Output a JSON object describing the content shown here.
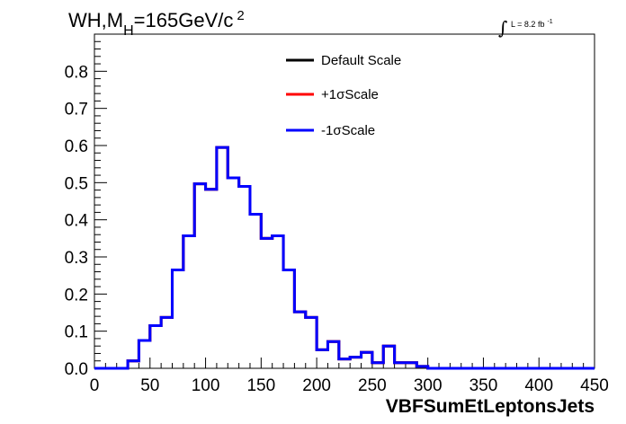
{
  "chart_data": {
    "type": "line",
    "title": {
      "prefix": "WH,M",
      "subscript": "H",
      "middle": "=165GeV/c",
      "superscript": "2"
    },
    "lumi": {
      "integral_symbol": "∫",
      "text": "L = 8.2 fb",
      "superscript": "-1"
    },
    "xlabel": "VBFSumEtLeptonsJets",
    "ylabel": "",
    "xlim": [
      0,
      450
    ],
    "ylim": [
      0,
      0.9
    ],
    "x_ticks": [
      0,
      50,
      100,
      150,
      200,
      250,
      300,
      350,
      400,
      450
    ],
    "x_tick_labels": [
      "0",
      "50",
      "100",
      "150",
      "200",
      "250",
      "300",
      "350",
      "400",
      "450"
    ],
    "y_ticks": [
      0,
      0.1,
      0.2,
      0.3,
      0.4,
      0.5,
      0.6,
      0.7,
      0.8
    ],
    "y_tick_labels": [
      "0.0",
      "0.1",
      "0.2",
      "0.3",
      "0.4",
      "0.5",
      "0.6",
      "0.7",
      "0.8"
    ],
    "grid": false,
    "legend_position": "top-center",
    "bin_edges": [
      0,
      10,
      20,
      30,
      40,
      50,
      60,
      70,
      80,
      90,
      100,
      110,
      120,
      130,
      140,
      150,
      160,
      170,
      180,
      190,
      200,
      210,
      220,
      230,
      240,
      250,
      260,
      270,
      280,
      290,
      300,
      310,
      320,
      330,
      340,
      350,
      360,
      370,
      380,
      390,
      400,
      410,
      420,
      430,
      440,
      450
    ],
    "series": [
      {
        "name": "Default Scale",
        "color": "#000000",
        "values": [
          0,
          0,
          0,
          0.02,
          0.075,
          0.115,
          0.137,
          0.265,
          0.357,
          0.497,
          0.482,
          0.595,
          0.513,
          0.49,
          0.415,
          0.35,
          0.357,
          0.265,
          0.152,
          0.137,
          0.05,
          0.072,
          0.025,
          0.03,
          0.043,
          0.015,
          0.06,
          0.015,
          0.015,
          0.005,
          0,
          0,
          0,
          0,
          0,
          0,
          0,
          0,
          0,
          0,
          0,
          0,
          0,
          0,
          0
        ]
      },
      {
        "name": "+1σScale",
        "color": "#ff0000",
        "values": [
          0,
          0,
          0,
          0.02,
          0.075,
          0.115,
          0.137,
          0.265,
          0.357,
          0.497,
          0.482,
          0.595,
          0.513,
          0.49,
          0.415,
          0.35,
          0.357,
          0.265,
          0.152,
          0.137,
          0.05,
          0.072,
          0.025,
          0.03,
          0.043,
          0.015,
          0.06,
          0.015,
          0.015,
          0.005,
          0,
          0,
          0,
          0,
          0,
          0,
          0,
          0,
          0,
          0,
          0,
          0,
          0,
          0,
          0
        ]
      },
      {
        "name": "-1σScale",
        "color": "#0000ff",
        "values": [
          0,
          0,
          0,
          0.02,
          0.075,
          0.115,
          0.137,
          0.265,
          0.357,
          0.497,
          0.482,
          0.595,
          0.513,
          0.49,
          0.415,
          0.35,
          0.357,
          0.265,
          0.152,
          0.137,
          0.05,
          0.072,
          0.025,
          0.03,
          0.043,
          0.015,
          0.06,
          0.015,
          0.015,
          0.005,
          0,
          0,
          0,
          0,
          0,
          0,
          0,
          0,
          0,
          0,
          0,
          0,
          0,
          0,
          0
        ]
      }
    ]
  }
}
